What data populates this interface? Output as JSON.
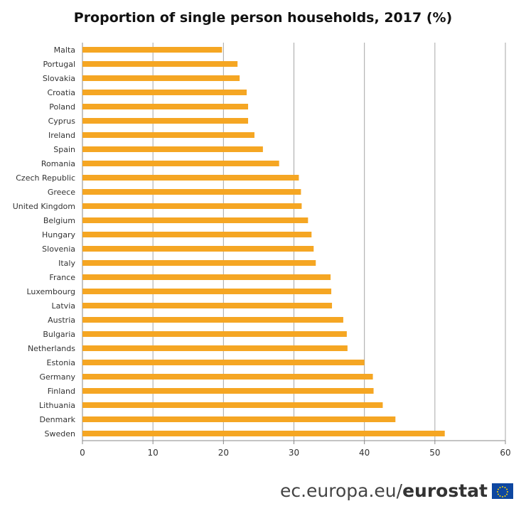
{
  "chart_data": {
    "type": "bar",
    "orientation": "horizontal",
    "title": "Proportion of single person households, 2017 (%)",
    "categories": [
      "Malta",
      "Portugal",
      "Slovakia",
      "Croatia",
      "Poland",
      "Cyprus",
      "Ireland",
      "Spain",
      "Romania",
      "Czech Republic",
      "Greece",
      "United Kingdom",
      "Belgium",
      "Hungary",
      "Slovenia",
      "Italy",
      "France",
      "Luxembourg",
      "Latvia",
      "Austria",
      "Bulgaria",
      "Netherlands",
      "Estonia",
      "Germany",
      "Finland",
      "Lithuania",
      "Denmark",
      "Sweden"
    ],
    "values": [
      19.8,
      22.0,
      22.3,
      23.3,
      23.5,
      23.5,
      24.4,
      25.6,
      27.9,
      30.7,
      31.0,
      31.1,
      32.0,
      32.5,
      32.8,
      33.1,
      35.2,
      35.3,
      35.4,
      37.0,
      37.5,
      37.6,
      40.0,
      41.2,
      41.3,
      42.6,
      44.4,
      51.4
    ],
    "xlim": [
      0,
      60
    ],
    "xticks": [
      0,
      10,
      20,
      30,
      40,
      50,
      60
    ],
    "grid": "vertical",
    "bar_color": "#f5a623",
    "grid_color": "#a6a6a6"
  },
  "footer": {
    "site": "ec.europa.eu/",
    "brand": "eurostat",
    "icon": "eu-flag-icon"
  }
}
